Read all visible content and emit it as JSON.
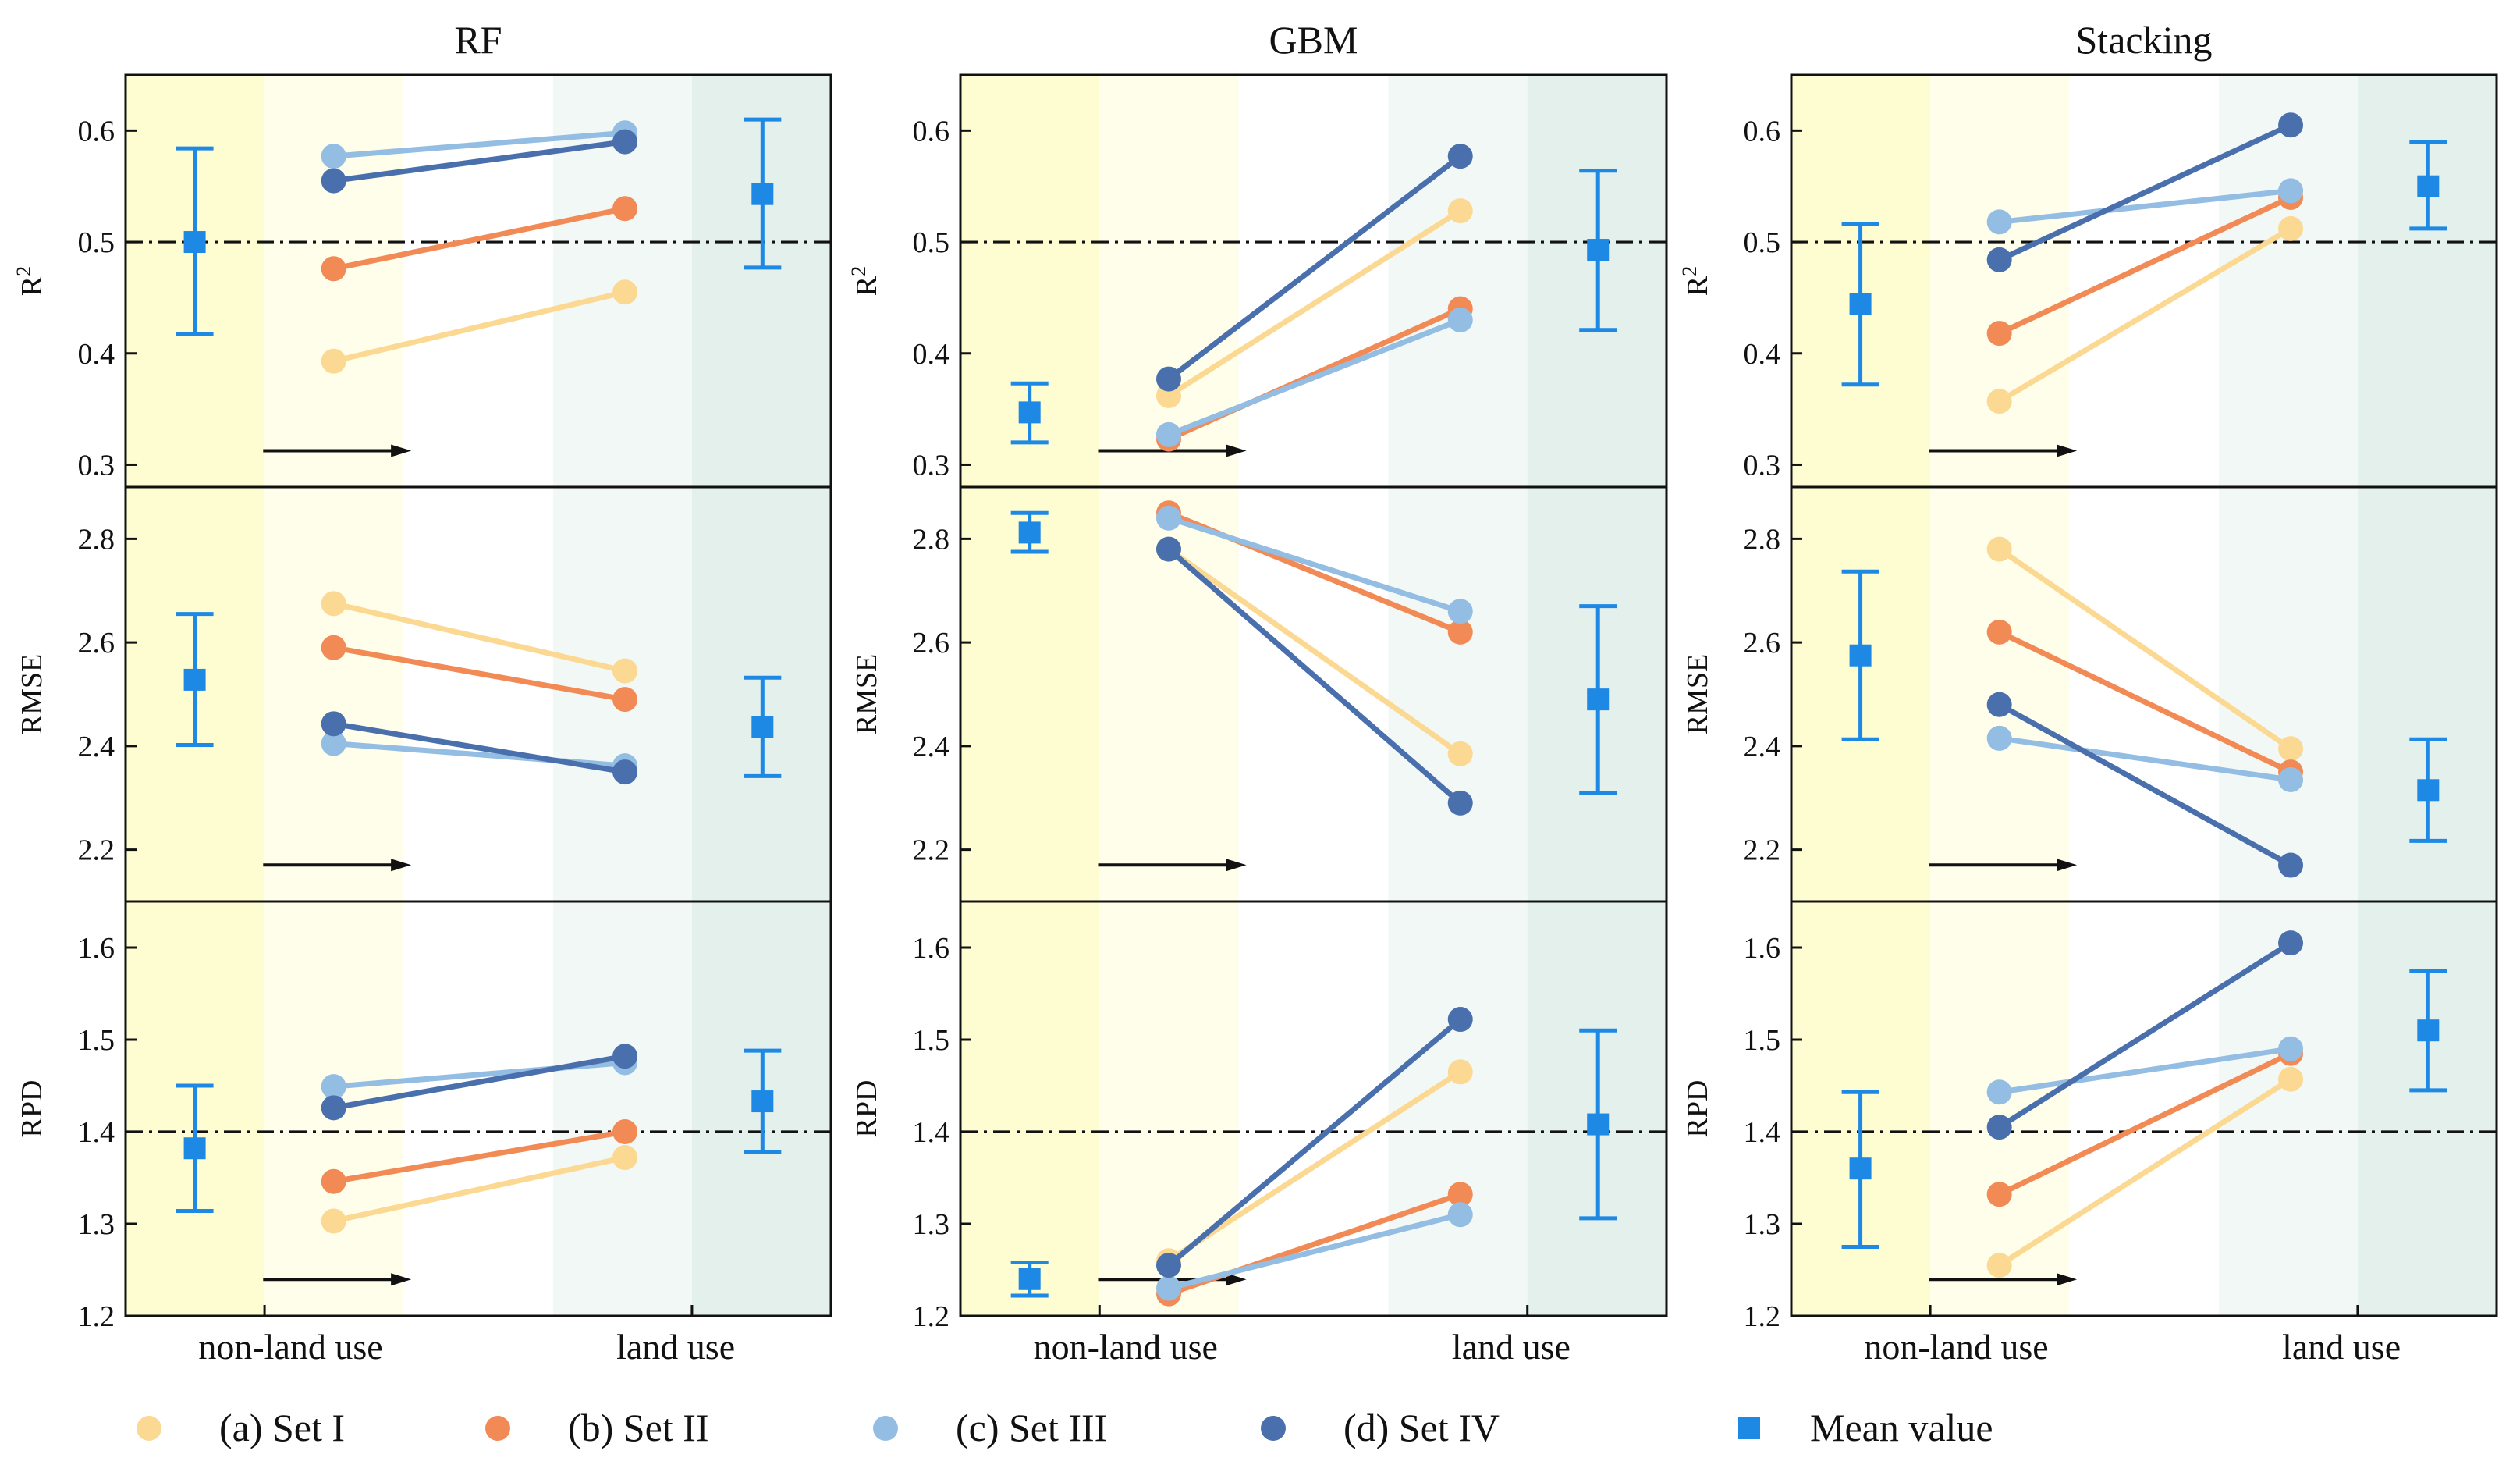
{
  "chart_data": {
    "type": "line",
    "x_categories": [
      "non-land use",
      "land use"
    ],
    "models": [
      "RF",
      "GBM",
      "Stacking"
    ],
    "metrics": [
      {
        "key": "R2",
        "label": "R",
        "label_sup": "2",
        "ylim": [
          0.28,
          0.65
        ],
        "ticks": [
          "0.3",
          "0.4",
          "0.5",
          "0.6"
        ],
        "threshold": 0.5
      },
      {
        "key": "RMSE",
        "label": "RMSE",
        "label_sup": "",
        "ylim": [
          2.1,
          2.9
        ],
        "ticks": [
          "2.2",
          "2.4",
          "2.6",
          "2.8"
        ],
        "threshold": null
      },
      {
        "key": "RPD",
        "label": "RPD",
        "label_sup": "",
        "ylim": [
          1.2,
          1.65
        ],
        "ticks": [
          "1.2",
          "1.3",
          "1.4",
          "1.5",
          "1.6"
        ],
        "threshold": 1.4
      }
    ],
    "series": [
      {
        "name": "(a) Set I",
        "color": "#fcd992"
      },
      {
        "name": "(b) Set II",
        "color": "#f28a56"
      },
      {
        "name": "(c) Set III",
        "color": "#93bde2"
      },
      {
        "name": "(d) Set IV",
        "color": "#4a6fad"
      }
    ],
    "mean_legend": {
      "name": "Mean value",
      "color": "#1e88e5"
    },
    "panels": [
      {
        "model": "RF",
        "metric": "R2",
        "values": [
          [
            0.393,
            0.455
          ],
          [
            0.476,
            0.53
          ],
          [
            0.577,
            0.598
          ],
          [
            0.555,
            0.59
          ]
        ],
        "mean_left": [
          0.5,
          0.417,
          0.584
        ],
        "mean_right": [
          0.543,
          0.477,
          0.61
        ]
      },
      {
        "model": "RF",
        "metric": "RMSE",
        "values": [
          [
            2.675,
            2.545
          ],
          [
            2.59,
            2.49
          ],
          [
            2.405,
            2.362
          ],
          [
            2.443,
            2.35
          ]
        ],
        "mean_left": [
          2.528,
          2.402,
          2.655
        ],
        "mean_right": [
          2.437,
          2.342,
          2.532
        ]
      },
      {
        "model": "RF",
        "metric": "RPD",
        "values": [
          [
            1.303,
            1.372
          ],
          [
            1.346,
            1.4
          ],
          [
            1.449,
            1.475
          ],
          [
            1.426,
            1.482
          ]
        ],
        "mean_left": [
          1.382,
          1.314,
          1.45
        ],
        "mean_right": [
          1.433,
          1.378,
          1.488
        ]
      },
      {
        "model": "GBM",
        "metric": "R2",
        "values": [
          [
            0.362,
            0.528
          ],
          [
            0.323,
            0.44
          ],
          [
            0.327,
            0.43
          ],
          [
            0.377,
            0.577
          ]
        ],
        "mean_left": [
          0.347,
          0.32,
          0.373
        ],
        "mean_right": [
          0.493,
          0.421,
          0.564
        ]
      },
      {
        "model": "GBM",
        "metric": "RMSE",
        "values": [
          [
            2.78,
            2.385
          ],
          [
            2.85,
            2.62
          ],
          [
            2.84,
            2.66
          ],
          [
            2.78,
            2.29
          ]
        ],
        "mean_left": [
          2.812,
          2.775,
          2.85
        ],
        "mean_right": [
          2.49,
          2.31,
          2.67
        ]
      },
      {
        "model": "GBM",
        "metric": "RPD",
        "values": [
          [
            1.26,
            1.465
          ],
          [
            1.224,
            1.332
          ],
          [
            1.23,
            1.31
          ],
          [
            1.255,
            1.522
          ]
        ],
        "mean_left": [
          1.24,
          1.222,
          1.258
        ],
        "mean_right": [
          1.408,
          1.306,
          1.51
        ]
      },
      {
        "model": "Stacking",
        "metric": "R2",
        "values": [
          [
            0.357,
            0.512
          ],
          [
            0.418,
            0.54
          ],
          [
            0.518,
            0.546
          ],
          [
            0.484,
            0.605
          ]
        ],
        "mean_left": [
          0.444,
          0.372,
          0.516
        ],
        "mean_right": [
          0.55,
          0.512,
          0.59
        ]
      },
      {
        "model": "Stacking",
        "metric": "RMSE",
        "values": [
          [
            2.78,
            2.395
          ],
          [
            2.62,
            2.35
          ],
          [
            2.415,
            2.335
          ],
          [
            2.48,
            2.17
          ]
        ],
        "mean_left": [
          2.575,
          2.413,
          2.737
        ],
        "mean_right": [
          2.315,
          2.217,
          2.413
        ]
      },
      {
        "model": "Stacking",
        "metric": "RPD",
        "values": [
          [
            1.255,
            1.457
          ],
          [
            1.332,
            1.485
          ],
          [
            1.443,
            1.49
          ],
          [
            1.405,
            1.605
          ]
        ],
        "mean_left": [
          1.36,
          1.275,
          1.443
        ],
        "mean_right": [
          1.51,
          1.445,
          1.575
        ]
      }
    ]
  }
}
